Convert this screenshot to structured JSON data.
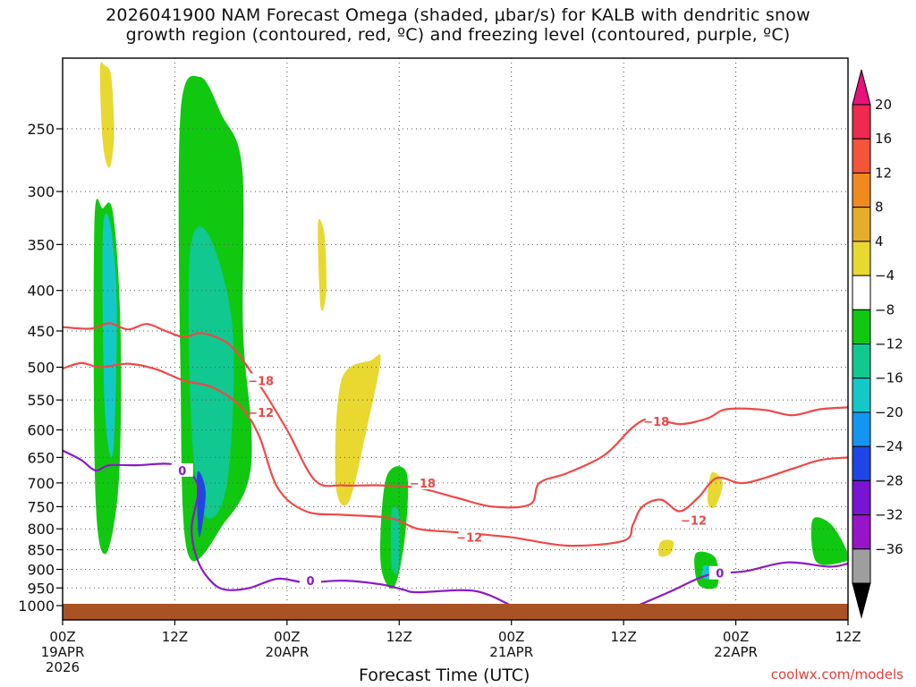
{
  "chart_data": {
    "type": "heatmap",
    "title_lines": [
      "2026041900 NAM Forecast Omega (shaded, μbar/s) for KALB with dendritic snow",
      "growth region (contoured, red, ºC) and freezing level (contoured, purple, ºC)"
    ],
    "xlabel": "Forecast Time (UTC)",
    "credit": "coolwx.com/models",
    "x_hours_range": [
      0,
      84
    ],
    "x_ticks": [
      {
        "hour": 0,
        "lines": [
          "00Z",
          "19APR",
          "2026"
        ]
      },
      {
        "hour": 12,
        "lines": [
          "12Z"
        ]
      },
      {
        "hour": 24,
        "lines": [
          "00Z",
          "20APR"
        ]
      },
      {
        "hour": 36,
        "lines": [
          "12Z"
        ]
      },
      {
        "hour": 48,
        "lines": [
          "00Z",
          "21APR"
        ]
      },
      {
        "hour": 60,
        "lines": [
          "12Z"
        ]
      },
      {
        "hour": 72,
        "lines": [
          "00Z",
          "22APR"
        ]
      },
      {
        "hour": 84,
        "lines": [
          "12Z"
        ]
      }
    ],
    "y_ticks": [
      "250",
      "300",
      "350",
      "400",
      "450",
      "500",
      "550",
      "600",
      "650",
      "700",
      "750",
      "800",
      "850",
      "900",
      "950",
      "1000"
    ],
    "y_tick_values": [
      250,
      300,
      350,
      400,
      450,
      500,
      550,
      600,
      650,
      700,
      750,
      800,
      850,
      900,
      950,
      1000
    ],
    "y_range_hpa": [
      200,
      1020
    ],
    "grid": true,
    "colorbar": {
      "labels": [
        "20",
        "16",
        "12",
        "8",
        "4",
        "−4",
        "−8",
        "−12",
        "−16",
        "−20",
        "−24",
        "−28",
        "−32",
        "−36"
      ],
      "colors": [
        "#ee2a4e",
        "#f2553a",
        "#f08a1e",
        "#e6ad2c",
        "#e8d830",
        "#ffffff",
        "#10c810",
        "#10c890",
        "#14c8c8",
        "#1496f0",
        "#1e46e6",
        "#7a14d2",
        "#9814c8",
        "#9e9e9e"
      ],
      "top_arrow_color": "#e6147a",
      "bottom_arrow_color": "#000000"
    },
    "omega_regions": [
      {
        "value": 4,
        "color": "#e8d830",
        "hours": [
          4,
          4.5,
          5.2,
          5.5,
          5.0,
          4.3
        ],
        "hpa": [
          210,
          208,
          215,
          255,
          280,
          260
        ]
      },
      {
        "value": -6,
        "color": "#10c810",
        "hours": [
          3.4,
          4.3,
          5.4,
          6.2,
          6.0,
          4.6,
          3.5
        ],
        "hpa": [
          330,
          315,
          320,
          450,
          700,
          860,
          720
        ]
      },
      {
        "value": -14,
        "color": "#14c8c8",
        "hours": [
          4.3,
          5.1,
          5.8,
          5.4,
          4.5
        ],
        "hpa": [
          340,
          330,
          420,
          640,
          560
        ]
      },
      {
        "value": -6,
        "color": "#10c810",
        "hours": [
          12.6,
          14.7,
          17.0,
          19.2,
          19.3,
          20.2,
          19.8,
          17.5,
          13.4,
          12.6
        ],
        "hpa": [
          240,
          215,
          240,
          280,
          450,
          600,
          700,
          780,
          860,
          500
        ]
      },
      {
        "value": -11,
        "color": "#10c890",
        "hours": [
          13.6,
          15.6,
          18.2,
          17.6,
          15.2,
          13.8
        ],
        "hpa": [
          360,
          340,
          450,
          700,
          770,
          600
        ]
      },
      {
        "value": -20,
        "color": "#1e46e6",
        "hours": [
          14.4,
          15.3,
          14.6
        ],
        "hpa": [
          680,
          720,
          820
        ]
      },
      {
        "value": 4,
        "color": "#e8d830",
        "hours": [
          27.3,
          28.0,
          28.2,
          27.6
        ],
        "hpa": [
          330,
          340,
          400,
          420
        ]
      },
      {
        "value": 4,
        "color": "#e8d830",
        "hours": [
          29.8,
          33.0,
          34.0,
          32.5,
          30.6,
          29.2
        ],
        "hpa": [
          520,
          490,
          490,
          600,
          740,
          700
        ]
      },
      {
        "value": -6,
        "color": "#10c810",
        "hours": [
          34.6,
          36.8,
          36.6,
          35.4,
          34.0
        ],
        "hpa": [
          690,
          680,
          820,
          950,
          880
        ]
      },
      {
        "value": -11,
        "color": "#10c890",
        "hours": [
          35.2,
          36.0,
          35.9,
          35.2
        ],
        "hpa": [
          760,
          770,
          900,
          890
        ]
      },
      {
        "value": 4,
        "color": "#e8d830",
        "hours": [
          69.4,
          70.6,
          69.8,
          69.0
        ],
        "hpa": [
          680,
          700,
          750,
          740
        ]
      },
      {
        "value": 4,
        "color": "#e8d830",
        "hours": [
          64.0,
          65.3,
          65.0,
          63.8
        ],
        "hpa": [
          830,
          830,
          860,
          865
        ]
      },
      {
        "value": -6,
        "color": "#10c810",
        "hours": [
          67.7,
          69.8,
          70.0,
          68.0
        ],
        "hpa": [
          860,
          870,
          945,
          940
        ]
      },
      {
        "value": -14,
        "color": "#14c8c8",
        "hours": [
          68.6,
          69.6,
          69.2,
          68.4
        ],
        "hpa": [
          890,
          900,
          925,
          920
        ]
      },
      {
        "value": -6,
        "color": "#10c810",
        "hours": [
          80.2,
          82.2,
          84.0,
          83.6,
          80.6
        ],
        "hpa": [
          780,
          790,
          860,
          880,
          880
        ]
      }
    ],
    "isotherms_minus12": [
      {
        "hour": 0,
        "hpa": 502
      },
      {
        "hour": 2,
        "hpa": 494
      },
      {
        "hour": 4,
        "hpa": 500
      },
      {
        "hour": 7,
        "hpa": 495
      },
      {
        "hour": 10,
        "hpa": 503
      },
      {
        "hour": 13,
        "hpa": 520
      },
      {
        "hour": 16,
        "hpa": 530
      },
      {
        "hour": 19,
        "hpa": 560
      },
      {
        "hour": 21,
        "hpa": 610
      },
      {
        "hour": 23,
        "hpa": 710
      },
      {
        "hour": 26,
        "hpa": 760
      },
      {
        "hour": 30,
        "hpa": 768
      },
      {
        "hour": 35,
        "hpa": 775
      },
      {
        "hour": 38,
        "hpa": 800
      },
      {
        "hour": 42,
        "hpa": 808
      },
      {
        "hour": 48,
        "hpa": 820
      },
      {
        "hour": 54,
        "hpa": 840
      },
      {
        "hour": 60,
        "hpa": 828
      },
      {
        "hour": 61,
        "hpa": 790
      },
      {
        "hour": 62,
        "hpa": 750
      },
      {
        "hour": 64,
        "hpa": 735
      },
      {
        "hour": 66,
        "hpa": 760
      },
      {
        "hour": 68,
        "hpa": 730
      },
      {
        "hour": 70,
        "hpa": 690
      },
      {
        "hour": 73,
        "hpa": 700
      },
      {
        "hour": 78,
        "hpa": 672
      },
      {
        "hour": 81,
        "hpa": 655
      },
      {
        "hour": 84,
        "hpa": 650
      }
    ],
    "isotherms_minus18": [
      {
        "hour": 0,
        "hpa": 445
      },
      {
        "hour": 3,
        "hpa": 447
      },
      {
        "hour": 5,
        "hpa": 440
      },
      {
        "hour": 7,
        "hpa": 448
      },
      {
        "hour": 9,
        "hpa": 441
      },
      {
        "hour": 11,
        "hpa": 450
      },
      {
        "hour": 13,
        "hpa": 458
      },
      {
        "hour": 15,
        "hpa": 453
      },
      {
        "hour": 18,
        "hpa": 470
      },
      {
        "hour": 21,
        "hpa": 525
      },
      {
        "hour": 24,
        "hpa": 600
      },
      {
        "hour": 27,
        "hpa": 695
      },
      {
        "hour": 30,
        "hpa": 705
      },
      {
        "hour": 34,
        "hpa": 705
      },
      {
        "hour": 38,
        "hpa": 710
      },
      {
        "hour": 42,
        "hpa": 730
      },
      {
        "hour": 46,
        "hpa": 750
      },
      {
        "hour": 50,
        "hpa": 745
      },
      {
        "hour": 51,
        "hpa": 700
      },
      {
        "hour": 54,
        "hpa": 680
      },
      {
        "hour": 58,
        "hpa": 645
      },
      {
        "hour": 61,
        "hpa": 595
      },
      {
        "hour": 63,
        "hpa": 580
      },
      {
        "hour": 66,
        "hpa": 590
      },
      {
        "hour": 69,
        "hpa": 580
      },
      {
        "hour": 71,
        "hpa": 565
      },
      {
        "hour": 75,
        "hpa": 566
      },
      {
        "hour": 78,
        "hpa": 575
      },
      {
        "hour": 81,
        "hpa": 565
      },
      {
        "hour": 84,
        "hpa": 562
      }
    ],
    "freezing_level_0": [
      {
        "hour": 0,
        "hpa": 637
      },
      {
        "hour": 2,
        "hpa": 655
      },
      {
        "hour": 3.5,
        "hpa": 675
      },
      {
        "hour": 5,
        "hpa": 665
      },
      {
        "hour": 8,
        "hpa": 665
      },
      {
        "hour": 11,
        "hpa": 662
      },
      {
        "hour": 13,
        "hpa": 670
      },
      {
        "hour": 14.5,
        "hpa": 710
      },
      {
        "hour": 13.8,
        "hpa": 800
      },
      {
        "hour": 14.5,
        "hpa": 880
      },
      {
        "hour": 16,
        "hpa": 935
      },
      {
        "hour": 17.5,
        "hpa": 955
      },
      {
        "hour": 20,
        "hpa": 950
      },
      {
        "hour": 23,
        "hpa": 925
      },
      {
        "hour": 26,
        "hpa": 935
      },
      {
        "hour": 30,
        "hpa": 930
      },
      {
        "hour": 34,
        "hpa": 940
      },
      {
        "hour": 36.5,
        "hpa": 955
      },
      {
        "hour": 38,
        "hpa": 962
      },
      {
        "hour": 44,
        "hpa": 958
      },
      {
        "hour": 48,
        "hpa": 1000
      }
    ],
    "freezing_level_0_b": [
      {
        "hour": 61.5,
        "hpa": 1000
      },
      {
        "hour": 65,
        "hpa": 960
      },
      {
        "hour": 69,
        "hpa": 915
      },
      {
        "hour": 73,
        "hpa": 905
      },
      {
        "hour": 77.5,
        "hpa": 882
      },
      {
        "hour": 82,
        "hpa": 893
      },
      {
        "hour": 84,
        "hpa": 885
      }
    ],
    "contour_labels": [
      {
        "text": "−18",
        "hour": 21.2,
        "hpa": 520,
        "color": "#e84848"
      },
      {
        "text": "−12",
        "hour": 21.2,
        "hpa": 570,
        "color": "#e84848"
      },
      {
        "text": "−18",
        "hour": 38.5,
        "hpa": 700,
        "color": "#e84848"
      },
      {
        "text": "−12",
        "hour": 43.5,
        "hpa": 820,
        "color": "#e84848"
      },
      {
        "text": "−18",
        "hour": 63.5,
        "hpa": 585,
        "color": "#e84848"
      },
      {
        "text": "−12",
        "hour": 67.5,
        "hpa": 780,
        "color": "#e84848"
      },
      {
        "text": "0",
        "hour": 12.8,
        "hpa": 675,
        "color": "#8a1ac8"
      },
      {
        "text": "0",
        "hour": 26.5,
        "hpa": 930,
        "color": "#8a1ac8"
      },
      {
        "text": "0",
        "hour": 70.3,
        "hpa": 910,
        "color": "#8a1ac8"
      }
    ],
    "ground_color": "#a95226",
    "isotherm_color": "#f04848",
    "freezing_color": "#8a1ac8"
  }
}
